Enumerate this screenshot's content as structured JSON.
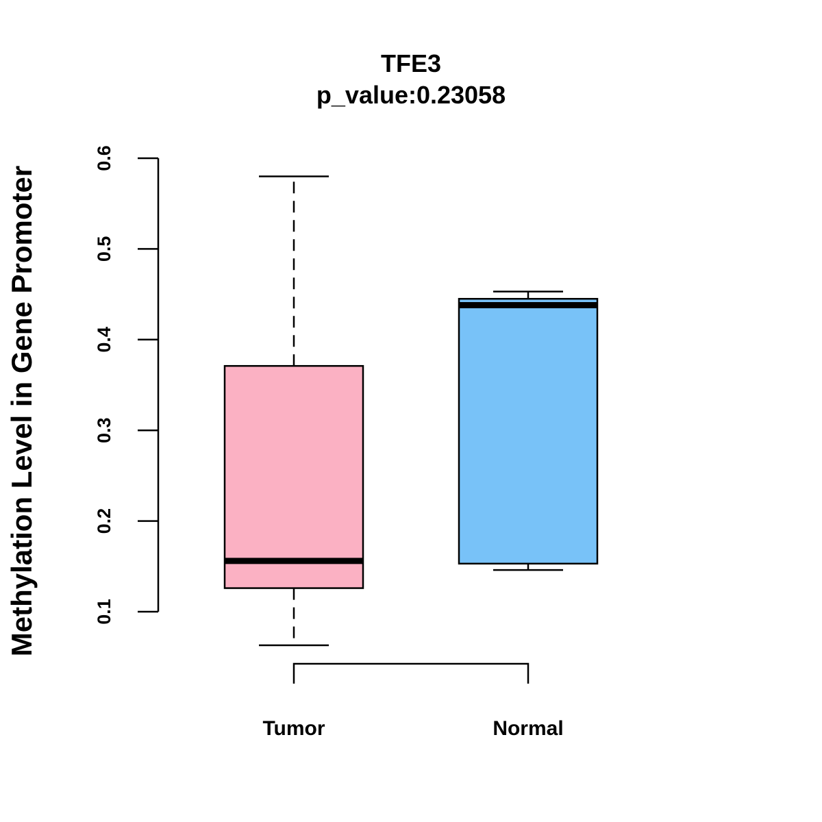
{
  "chart_data": {
    "type": "boxplot",
    "title": "TFE3",
    "subtitle": "p_value:0.23058",
    "xlabel": "",
    "ylabel": "Methylation Level in Gene Promoter",
    "ylim": [
      0.1,
      0.6
    ],
    "yticks": [
      "0.1",
      "0.2",
      "0.3",
      "0.4",
      "0.5",
      "0.6"
    ],
    "categories": [
      "Tumor",
      "Normal"
    ],
    "groups": [
      {
        "name": "Tumor",
        "color": "#FBB1C3",
        "whisker_low": 0.063,
        "q1": 0.126,
        "median": 0.156,
        "q3": 0.371,
        "whisker_high": 0.58,
        "whisker_style": "dashed"
      },
      {
        "name": "Normal",
        "color": "#78C2F8",
        "whisker_low": 0.146,
        "q1": 0.153,
        "median": 0.438,
        "q3": 0.445,
        "whisker_high": 0.453,
        "whisker_style": "dashed"
      }
    ],
    "comparison_bracket": [
      "Tumor",
      "Normal"
    ],
    "grid": false,
    "legend": "none"
  }
}
